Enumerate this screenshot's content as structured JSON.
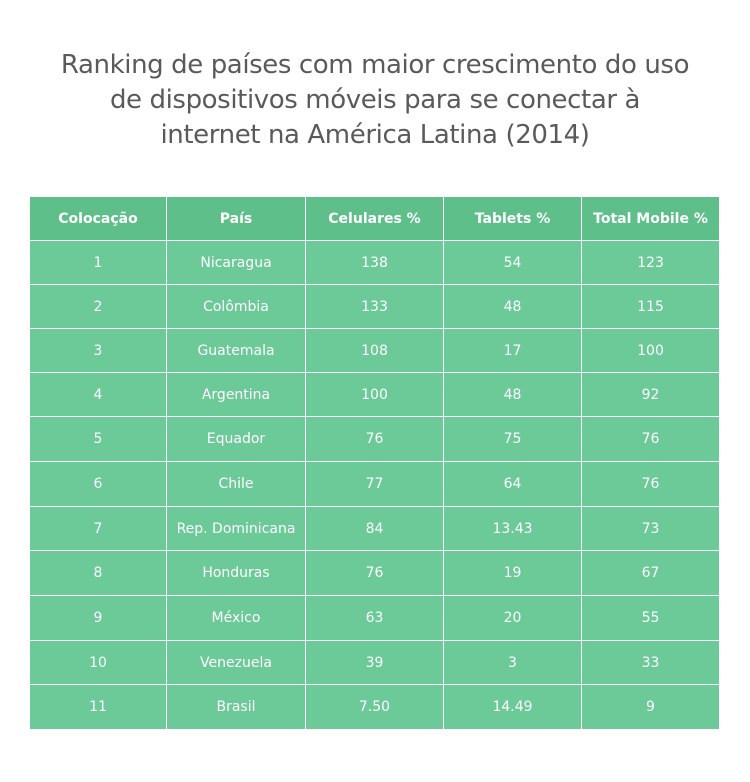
{
  "title": "Ranking de países com maior crescimento do uso de dispositivos móveis para se conectar à internet na América Latina (2014)",
  "colors": {
    "header_bg": "#5fbf8a",
    "cell_bg": "#6cc998",
    "text": "#ffffff",
    "title_text": "#5a5a5a"
  },
  "chart_data": {
    "type": "table",
    "title": "Ranking de países com maior crescimento do uso de dispositivos móveis para se conectar à internet na América Latina (2014)",
    "columns": [
      "Colocação",
      "País",
      "Celulares %",
      "Tablets %",
      "Total Mobile %"
    ],
    "rows": [
      [
        "1",
        "Nicaragua",
        "138",
        "54",
        "123"
      ],
      [
        "2",
        "Colômbia",
        "133",
        "48",
        "115"
      ],
      [
        "3",
        "Guatemala",
        "108",
        "17",
        "100"
      ],
      [
        "4",
        "Argentina",
        "100",
        "48",
        "92"
      ],
      [
        "5",
        "Equador",
        "76",
        "75",
        "76"
      ],
      [
        "6",
        "Chile",
        "77",
        "64",
        "76"
      ],
      [
        "7",
        "Rep. Dominicana",
        "84",
        "13.43",
        "73"
      ],
      [
        "8",
        "Honduras",
        "76",
        "19",
        "67"
      ],
      [
        "9",
        "México",
        "63",
        "20",
        "55"
      ],
      [
        "10",
        "Venezuela",
        "39",
        "3",
        "33"
      ],
      [
        "11",
        "Brasil",
        "7.50",
        "14.49",
        "9"
      ]
    ]
  }
}
